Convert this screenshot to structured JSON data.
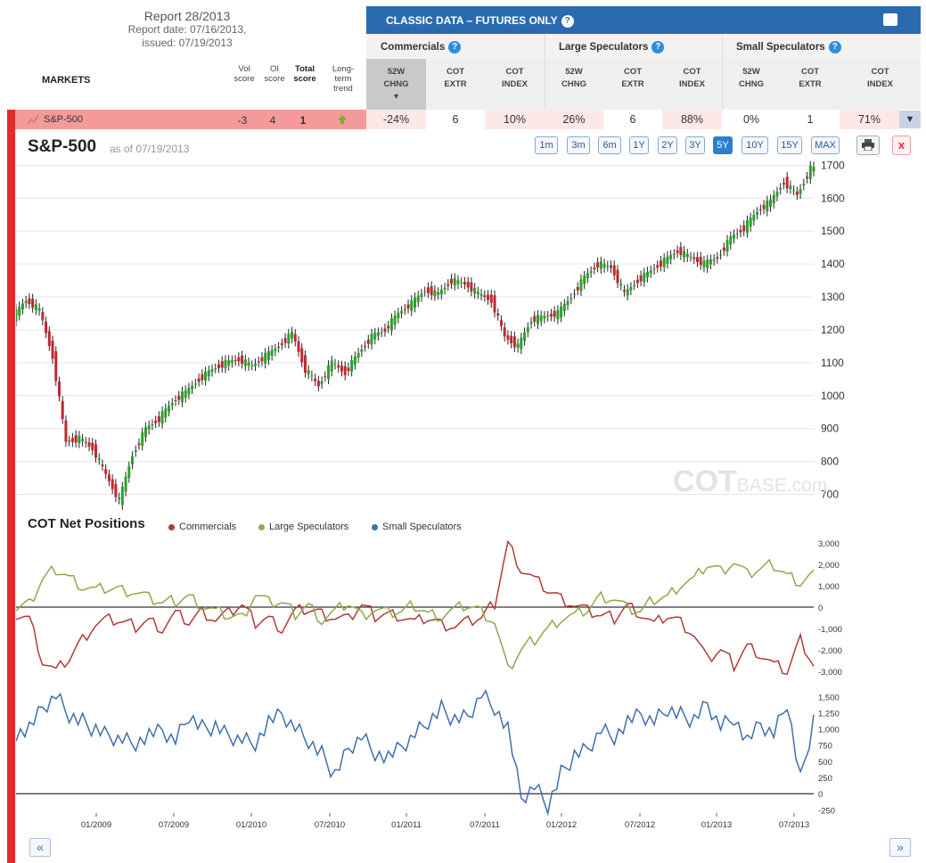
{
  "report": {
    "title": "Report 28/2013",
    "report_date": "Report date: 07/16/2013,",
    "issued": "issued: 07/19/2013"
  },
  "table": {
    "markets_label": "MARKETS",
    "score_headers": [
      "Vol score",
      "OI score",
      "Total score",
      "Long-term trend"
    ],
    "classic_title": "CLASSIC DATA – FUTURES ONLY",
    "groups": [
      "Commercials",
      "Large Speculators",
      "Small Speculators"
    ],
    "col_headers": [
      [
        "52W",
        "CHNG"
      ],
      [
        "COT",
        "EXTR"
      ],
      [
        "COT",
        "INDEX"
      ],
      [
        "52W",
        "CHNG"
      ],
      [
        "COT",
        "EXTR"
      ],
      [
        "COT",
        "INDEX"
      ],
      [
        "52W",
        "CHNG"
      ],
      [
        "COT",
        "EXTR"
      ],
      [
        "COT",
        "INDEX"
      ]
    ],
    "row": {
      "name": "S&P-500",
      "vol": "-3",
      "oi": "4",
      "total": "1",
      "cells": [
        "-24%",
        "6",
        "10%",
        "26%",
        "6",
        "88%",
        "0%",
        "1",
        "71%"
      ]
    }
  },
  "chart_header": {
    "title": "S&P-500",
    "as_of": "as of 07/19/2013",
    "ranges": [
      "1m",
      "3m",
      "6m",
      "1Y",
      "2Y",
      "3Y",
      "5Y",
      "10Y",
      "15Y",
      "MAX"
    ],
    "active_range": "5Y"
  },
  "watermark": {
    "main": "COT",
    "sub": "BASE.com"
  },
  "cot_section": {
    "title": "COT Net Positions"
  },
  "nav": {
    "prev": "«",
    "next": "»"
  },
  "colors": {
    "up": "#2ca02c",
    "down": "#c0282d",
    "commercials": "#b03a3a",
    "large": "#8aab4b",
    "small": "#3f6faf"
  },
  "chart_data": [
    {
      "type": "line",
      "ylim": [
        650,
        1720
      ],
      "yticks": [
        700,
        800,
        900,
        1000,
        1100,
        1200,
        1300,
        1400,
        1500,
        1600,
        1700
      ],
      "x": [
        "2008-07",
        "2008-08",
        "2008-09",
        "2008-10",
        "2008-11",
        "2008-12",
        "2009-01",
        "2009-02",
        "2009-03",
        "2009-04",
        "2009-05",
        "2009-06",
        "2009-07",
        "2009-08",
        "2009-09",
        "2009-10",
        "2009-11",
        "2009-12",
        "2010-01",
        "2010-02",
        "2010-03",
        "2010-04",
        "2010-05",
        "2010-06",
        "2010-07",
        "2010-08",
        "2010-09",
        "2010-10",
        "2010-11",
        "2010-12",
        "2011-01",
        "2011-02",
        "2011-03",
        "2011-04",
        "2011-05",
        "2011-06",
        "2011-07",
        "2011-08",
        "2011-09",
        "2011-10",
        "2011-11",
        "2011-12",
        "2012-01",
        "2012-02",
        "2012-03",
        "2012-04",
        "2012-05",
        "2012-06",
        "2012-07",
        "2012-08",
        "2012-09",
        "2012-10",
        "2012-11",
        "2012-12",
        "2013-01",
        "2013-02",
        "2013-03",
        "2013-04",
        "2013-05",
        "2013-06",
        "2013-07"
      ],
      "series": [
        {
          "values": [
            1240,
            1290,
            1260,
            1120,
            860,
            870,
            840,
            760,
            680,
            820,
            900,
            930,
            980,
            1010,
            1050,
            1080,
            1100,
            1110,
            1090,
            1120,
            1150,
            1190,
            1080,
            1030,
            1100,
            1070,
            1130,
            1180,
            1200,
            1250,
            1280,
            1320,
            1310,
            1350,
            1340,
            1310,
            1290,
            1180,
            1150,
            1230,
            1240,
            1250,
            1300,
            1360,
            1400,
            1390,
            1310,
            1350,
            1380,
            1410,
            1440,
            1420,
            1400,
            1420,
            1480,
            1510,
            1560,
            1590,
            1650,
            1610,
            1690
          ]
        }
      ],
      "xticks": [
        "01/2009",
        "07/2009",
        "01/2010",
        "07/2010",
        "01/2011",
        "07/2011",
        "01/2012",
        "07/2012",
        "01/2013",
        "07/2013"
      ]
    },
    {
      "type": "line",
      "ylim": [
        -3300,
        3300
      ],
      "yticks": [
        3000,
        2000,
        1000,
        0,
        -1000,
        -2000,
        -3000
      ],
      "ytick_labels": [
        "3,000",
        "2,000",
        "1,000",
        "0",
        "-1,000",
        "-2,000",
        "-3,000"
      ],
      "legend": [
        "Commercials",
        "Large Speculators",
        "Small Speculators"
      ],
      "series": [
        {
          "name": "Commercials",
          "values": [
            -300,
            -500,
            -2500,
            -3000,
            -2400,
            -1500,
            -800,
            -600,
            -700,
            -900,
            -600,
            -1000,
            -300,
            -700,
            -200,
            -600,
            -300,
            100,
            -700,
            -500,
            -1000,
            -200,
            -100,
            -300,
            -500,
            -600,
            100,
            -400,
            -300,
            -400,
            -700,
            -500,
            -800,
            -900,
            -700,
            -500,
            200,
            3000,
            1800,
            1300,
            800,
            400,
            100,
            -200,
            -400,
            -500,
            100,
            -300,
            -800,
            -400,
            -700,
            -1300,
            -2500,
            -2000,
            -2700,
            -1800,
            -2200,
            -2700,
            -3000,
            -1500,
            -2700
          ]
        },
        {
          "name": "Large Speculators",
          "values": [
            -100,
            100,
            1300,
            1800,
            1400,
            1000,
            800,
            900,
            800,
            700,
            400,
            200,
            300,
            500,
            100,
            -200,
            -400,
            -500,
            600,
            200,
            200,
            -300,
            100,
            -600,
            -200,
            200,
            -400,
            -100,
            -300,
            -200,
            100,
            -300,
            -400,
            -100,
            100,
            -200,
            -700,
            -3000,
            -2000,
            -1500,
            -1000,
            -500,
            -400,
            -100,
            500,
            400,
            -100,
            -200,
            400,
            500,
            1100,
            1300,
            2000,
            1700,
            2100,
            1500,
            1800,
            2000,
            1500,
            1200,
            1600
          ]
        }
      ]
    },
    {
      "type": "line",
      "ylim": [
        -300,
        1600
      ],
      "yticks": [
        1500,
        1250,
        1000,
        750,
        500,
        250,
        0,
        -250
      ],
      "ytick_labels": [
        "1,500",
        "1,250",
        "1,000",
        "750",
        "500",
        "250",
        "0",
        "-250"
      ],
      "series": [
        {
          "name": "Small Speculators",
          "values": [
            950,
            1000,
            1300,
            1500,
            1200,
            1100,
            1000,
            900,
            850,
            800,
            900,
            950,
            800,
            1200,
            1000,
            1050,
            900,
            850,
            800,
            1100,
            1200,
            1000,
            800,
            600,
            300,
            700,
            900,
            650,
            550,
            700,
            900,
            1100,
            1300,
            1150,
            1200,
            1550,
            1350,
            1000,
            -100,
            100,
            -200,
            300,
            600,
            700,
            1000,
            900,
            1100,
            1200,
            1100,
            1300,
            1200,
            1150,
            1400,
            1050,
            1200,
            800,
            1050,
            900,
            1400,
            200,
            1150
          ]
        }
      ]
    }
  ]
}
